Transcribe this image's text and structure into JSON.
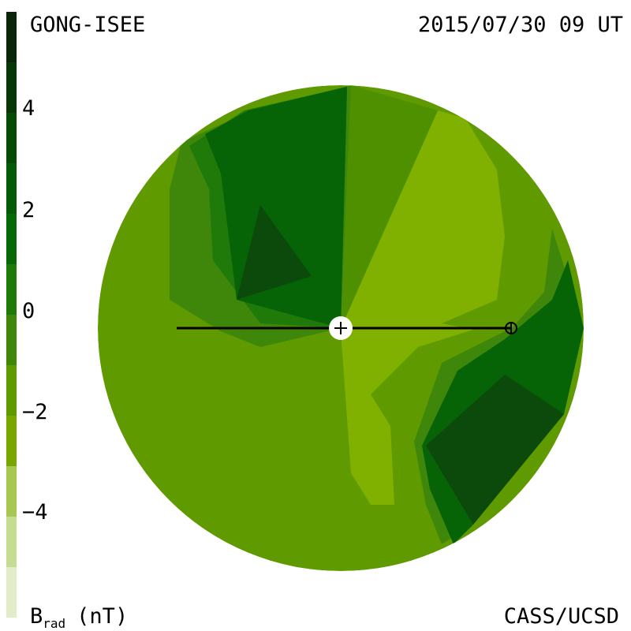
{
  "header": {
    "left": "GONG-ISEE",
    "right": "2015/07/30 09 UT"
  },
  "colorbar": {
    "labels": [
      "4",
      "2",
      "0",
      "−2",
      "−4"
    ]
  },
  "footer": {
    "quantity": "B",
    "subscript": "rad",
    "unit": "(nT)",
    "credit": "CASS/UCSD"
  }
}
